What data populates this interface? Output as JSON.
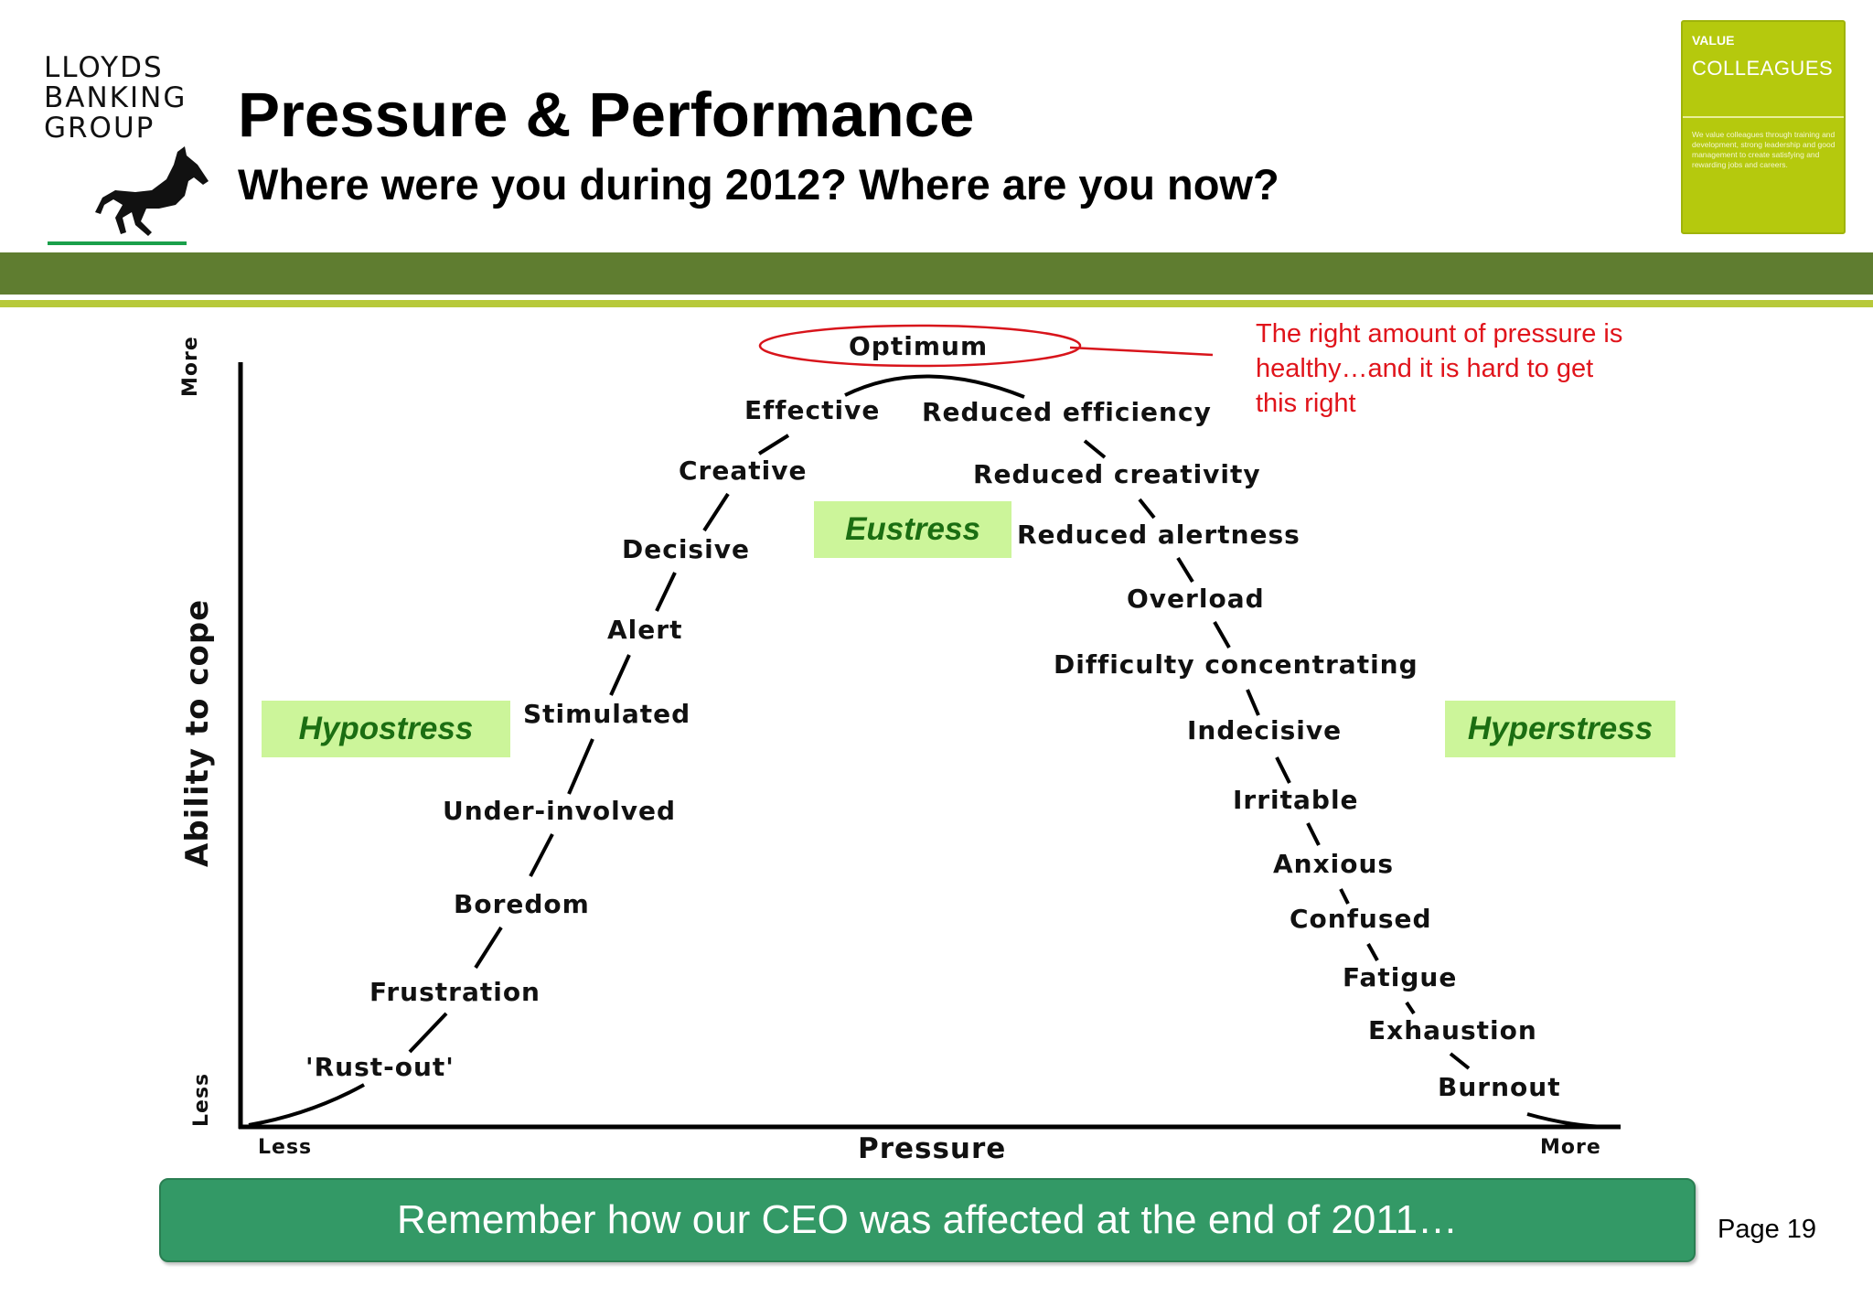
{
  "logo": {
    "line1": "LLOYDS",
    "line2": "BANKING",
    "line3": "GROUP",
    "icon": "black-horse-icon"
  },
  "header": {
    "title": "Pressure & Performance",
    "subtitle": "Where were you during 2012? Where are you now?"
  },
  "badge": {
    "small": "VALUE",
    "big": "COLLEAGUES",
    "body": "We value colleagues through training and development, strong leadership and good management to create satisfying and rewarding jobs and careers.",
    "color": "#b5c90d"
  },
  "diagram": {
    "axes": {
      "x_label": "Pressure",
      "x_min": "Less",
      "x_max": "More",
      "y_label": "Ability to cope",
      "y_min": "Less",
      "y_max": "More"
    },
    "peak_label": "Optimum",
    "left_labels": [
      "'Rust-out'",
      "Frustration",
      "Boredom",
      "Under-involved",
      "Stimulated",
      "Alert",
      "Decisive",
      "Creative",
      "Effective"
    ],
    "right_labels": [
      "Reduced efficiency",
      "Reduced creativity",
      "Reduced alertness",
      "Overload",
      "Difficulty concentrating",
      "Indecisive",
      "Irritable",
      "Anxious",
      "Confused",
      "Fatigue",
      "Exhaustion",
      "Burnout"
    ],
    "zones": {
      "hypo": "Hypostress",
      "eu": "Eustress",
      "hyper": "Hyperstress"
    },
    "callout": "The right amount of pressure is healthy…and it is hard to get this right",
    "callout_color": "#e0141b"
  },
  "footer": {
    "text": "Remember how our CEO was affected at the end of 2011…",
    "page": "Page 19"
  }
}
